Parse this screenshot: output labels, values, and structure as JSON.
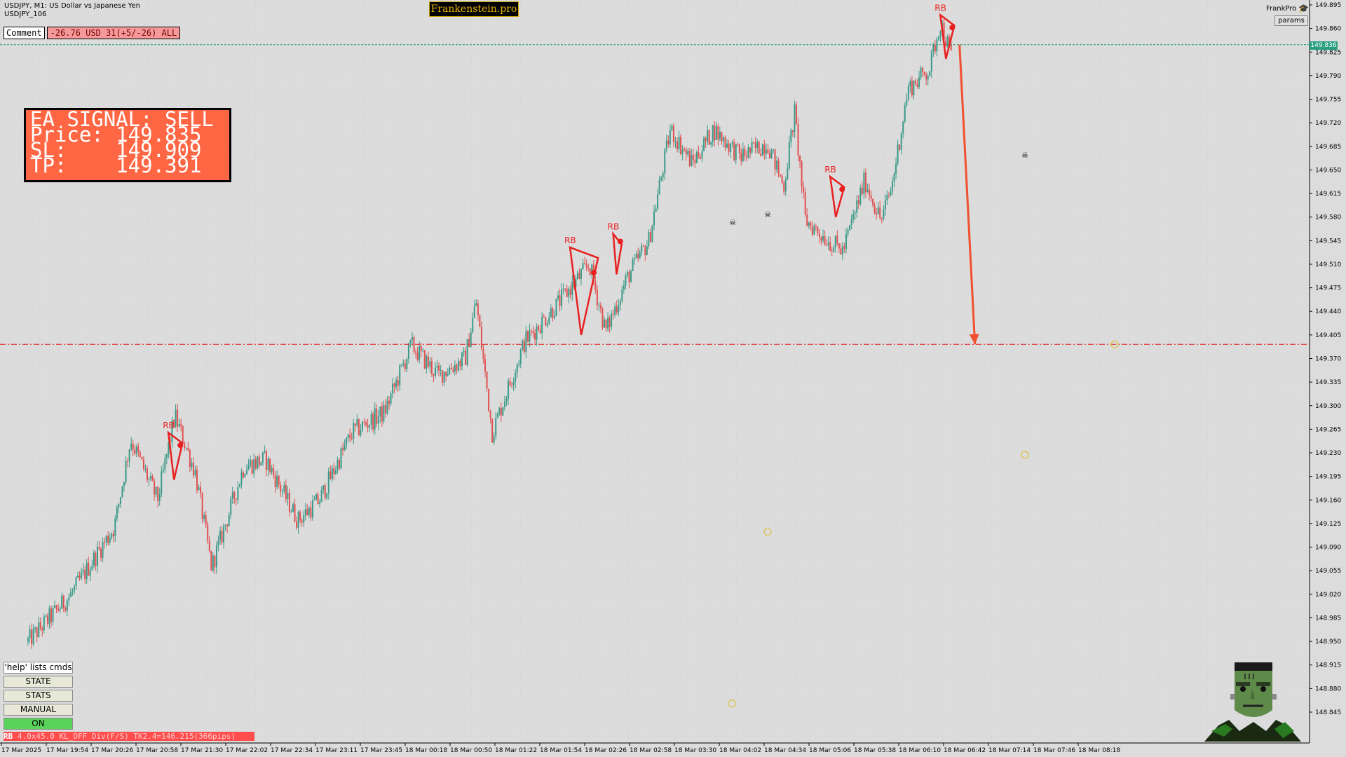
{
  "header": {
    "symbol_line": "USDJPY, M1:  US Dollar vs Japanese Yen",
    "account_line": "USDJPY_106"
  },
  "logo": {
    "text": "Frankenstein.pro"
  },
  "comment": {
    "label": "Comment",
    "value": "-26.76 USD 31(+5/-26) ALL"
  },
  "signal": {
    "line1": "EA SIGNAL: SELL",
    "line2": "Price: 149.835",
    "line3": "SL:    149.909",
    "line4": "TP:    149.391"
  },
  "top_right": {
    "label": "FrankPro",
    "icon": "graduation-cap-icon",
    "params_label": "params"
  },
  "commands": {
    "help": "'help' lists cmds",
    "state": "STATE",
    "stats": "STATS",
    "manual": "MANUAL",
    "on": "ON"
  },
  "status_bar": {
    "tag": "RB",
    "text": " 4.0x45.0 KL_OFF Div(F/S) TK2.4=146.215(366pips)"
  },
  "current_price_tag": "149.836",
  "mascot": {
    "icon": "frankenstein-mascot-icon"
  },
  "colors": {
    "bull": "#3a9a88",
    "bear": "#e05050",
    "signal_bg": "#ff6644",
    "tp_line": "#e02020",
    "price_line": "#1a9a6a",
    "arrow": "#f05030",
    "pattern": "#e82020"
  },
  "chart_data": {
    "type": "candlestick",
    "symbol": "USDJPY",
    "timeframe": "M1",
    "ylim": [
      148.82,
      149.895
    ],
    "y_ticks": [
      "149.895",
      "149.860",
      "149.825",
      "149.790",
      "149.755",
      "149.720",
      "149.685",
      "149.650",
      "149.615",
      "149.580",
      "149.545",
      "149.510",
      "149.475",
      "149.440",
      "149.405",
      "149.370",
      "149.335",
      "149.300",
      "149.265",
      "149.230",
      "149.195",
      "149.160",
      "149.125",
      "149.090",
      "149.055",
      "149.020",
      "148.985",
      "148.950",
      "148.915",
      "148.880",
      "148.845"
    ],
    "x_ticks": [
      "17 Mar 2025",
      "17 Mar 19:54",
      "17 Mar 20:26",
      "17 Mar 20:58",
      "17 Mar 21:30",
      "17 Mar 22:02",
      "17 Mar 22:34",
      "17 Mar 23:11",
      "17 Mar 23:45",
      "18 Mar 00:18",
      "18 Mar 00:50",
      "18 Mar 01:22",
      "18 Mar 01:54",
      "18 Mar 02:26",
      "18 Mar 02:58",
      "18 Mar 03:30",
      "18 Mar 04:02",
      "18 Mar 04:34",
      "18 Mar 05:06",
      "18 Mar 05:38",
      "18 Mar 06:10",
      "18 Mar 06:42",
      "18 Mar 07:14",
      "18 Mar 07:46",
      "18 Mar 08:18"
    ],
    "trend_points": [
      {
        "x": 0.0,
        "y": 148.95
      },
      {
        "x": 0.04,
        "y": 149.02
      },
      {
        "x": 0.08,
        "y": 149.12
      },
      {
        "x": 0.095,
        "y": 149.25
      },
      {
        "x": 0.12,
        "y": 149.16
      },
      {
        "x": 0.136,
        "y": 149.285
      },
      {
        "x": 0.155,
        "y": 149.2
      },
      {
        "x": 0.17,
        "y": 149.06
      },
      {
        "x": 0.2,
        "y": 149.21
      },
      {
        "x": 0.22,
        "y": 149.22
      },
      {
        "x": 0.25,
        "y": 149.13
      },
      {
        "x": 0.27,
        "y": 149.16
      },
      {
        "x": 0.3,
        "y": 149.26
      },
      {
        "x": 0.33,
        "y": 149.29
      },
      {
        "x": 0.355,
        "y": 149.39
      },
      {
        "x": 0.38,
        "y": 149.345
      },
      {
        "x": 0.405,
        "y": 149.37
      },
      {
        "x": 0.415,
        "y": 149.455
      },
      {
        "x": 0.43,
        "y": 149.26
      },
      {
        "x": 0.46,
        "y": 149.395
      },
      {
        "x": 0.49,
        "y": 149.45
      },
      {
        "x": 0.52,
        "y": 149.51
      },
      {
        "x": 0.535,
        "y": 149.41
      },
      {
        "x": 0.555,
        "y": 149.49
      },
      {
        "x": 0.575,
        "y": 149.545
      },
      {
        "x": 0.595,
        "y": 149.71
      },
      {
        "x": 0.615,
        "y": 149.66
      },
      {
        "x": 0.635,
        "y": 149.71
      },
      {
        "x": 0.66,
        "y": 149.67
      },
      {
        "x": 0.685,
        "y": 149.69
      },
      {
        "x": 0.7,
        "y": 149.625
      },
      {
        "x": 0.71,
        "y": 149.735
      },
      {
        "x": 0.72,
        "y": 149.575
      },
      {
        "x": 0.745,
        "y": 149.54
      },
      {
        "x": 0.755,
        "y": 149.53
      },
      {
        "x": 0.775,
        "y": 149.635
      },
      {
        "x": 0.79,
        "y": 149.575
      },
      {
        "x": 0.8,
        "y": 149.625
      },
      {
        "x": 0.815,
        "y": 149.77
      },
      {
        "x": 0.835,
        "y": 149.8
      },
      {
        "x": 0.845,
        "y": 149.87
      },
      {
        "x": 0.855,
        "y": 149.82
      }
    ],
    "current_price": 149.836,
    "take_profit": 149.391,
    "signal": "SELL"
  }
}
